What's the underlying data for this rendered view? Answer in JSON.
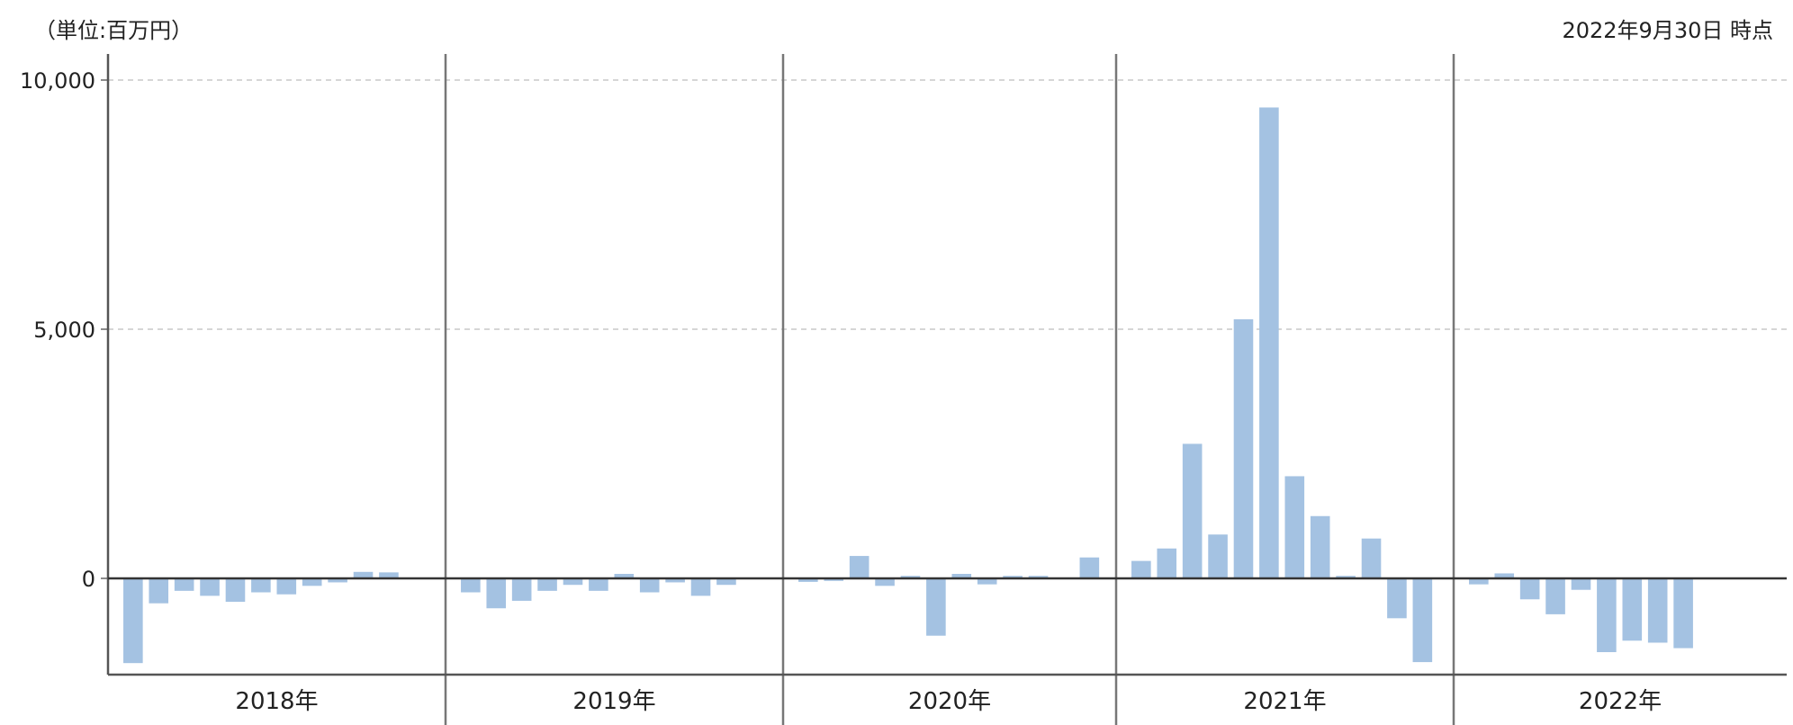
{
  "header": {
    "unit_label": "（単位:百万円）",
    "as_of": "2022年9月30日 時点"
  },
  "chart_data": {
    "type": "bar",
    "title": "",
    "xlabel": "",
    "ylabel": "",
    "unit": "百万円",
    "ylim": [
      -1950,
      10400
    ],
    "yticks": [
      0,
      5000,
      10000
    ],
    "ytick_labels": [
      "0",
      "5,000",
      "10,000"
    ],
    "grid": "horizontal dashed",
    "bar_color": "#a4c2e2",
    "years": [
      "2018年",
      "2019年",
      "2020年",
      "2021年",
      "2022年"
    ],
    "months_per_year": 12,
    "values": [
      [
        -1700,
        -500,
        -250,
        -350,
        -470,
        -280,
        -320,
        -150,
        -80,
        130,
        120,
        null
      ],
      [
        -280,
        -600,
        -450,
        -250,
        -130,
        -250,
        90,
        -280,
        -80,
        -350,
        -130,
        null
      ],
      [
        -70,
        -50,
        450,
        -150,
        50,
        -1150,
        90,
        -120,
        50,
        50,
        null,
        420
      ],
      [
        350,
        600,
        2700,
        880,
        5200,
        9450,
        2050,
        1250,
        50,
        800,
        -800,
        -1680
      ],
      [
        -120,
        100,
        -420,
        -720,
        -230,
        -1480,
        -1250,
        -1290,
        -1400,
        null,
        null,
        null
      ]
    ]
  }
}
